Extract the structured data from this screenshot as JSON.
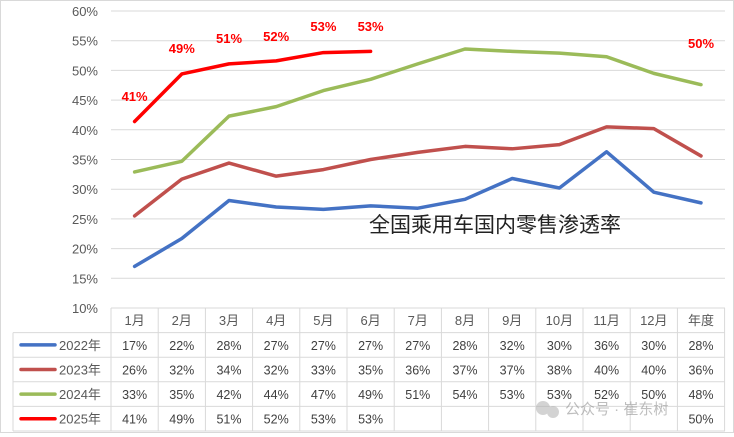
{
  "chart_data": {
    "type": "line",
    "title": "全国乘用车国内零售渗透率",
    "xlabel": "",
    "ylabel": "",
    "ylim": [
      10,
      60
    ],
    "y_ticks": [
      "10%",
      "15%",
      "20%",
      "25%",
      "30%",
      "35%",
      "40%",
      "45%",
      "50%",
      "55%",
      "60%"
    ],
    "categories": [
      "1月",
      "2月",
      "3月",
      "4月",
      "5月",
      "6月",
      "7月",
      "8月",
      "9月",
      "10月",
      "11月",
      "12月",
      "年度"
    ],
    "grid": true,
    "legend_placement": "data-table-left",
    "series": [
      {
        "name": "2022年",
        "color": "#4472c4",
        "values": [
          17,
          21.7,
          28.1,
          27,
          26.6,
          27.2,
          26.8,
          28.3,
          31.8,
          30.2,
          36.3,
          29.5,
          27.7
        ],
        "table": [
          "17%",
          "22%",
          "28%",
          "27%",
          "27%",
          "27%",
          "27%",
          "28%",
          "32%",
          "30%",
          "36%",
          "30%",
          "28%"
        ]
      },
      {
        "name": "2023年",
        "color": "#c0504d",
        "values": [
          25.5,
          31.7,
          34.4,
          32.2,
          33.3,
          35,
          36.2,
          37.2,
          36.8,
          37.5,
          40.5,
          40.2,
          35.6
        ],
        "table": [
          "26%",
          "32%",
          "34%",
          "32%",
          "33%",
          "35%",
          "36%",
          "37%",
          "37%",
          "38%",
          "40%",
          "40%",
          "36%"
        ]
      },
      {
        "name": "2024年",
        "color": "#9bbb59",
        "values": [
          32.9,
          34.7,
          42.3,
          43.9,
          46.6,
          48.5,
          51.1,
          53.6,
          53.2,
          52.9,
          52.3,
          49.5,
          47.6
        ],
        "table": [
          "33%",
          "35%",
          "42%",
          "44%",
          "47%",
          "49%",
          "51%",
          "54%",
          "53%",
          "53%",
          "52%",
          "50%",
          "48%"
        ]
      },
      {
        "name": "2025年",
        "color": "#ff0000",
        "values": [
          41.4,
          49.4,
          51.1,
          51.6,
          53,
          53.2,
          null,
          null,
          null,
          null,
          null,
          null,
          null
        ],
        "table": [
          "41%",
          "49%",
          "51%",
          "52%",
          "53%",
          "53%",
          "",
          "",
          "",
          "",
          "",
          "",
          "50%"
        ],
        "data_labels": [
          "41%",
          "49%",
          "51%",
          "52%",
          "53%",
          "53%",
          "",
          "",
          "",
          "",
          "",
          "",
          "50%"
        ]
      }
    ]
  },
  "watermark": {
    "text": "公众号 · 崔东树"
  }
}
